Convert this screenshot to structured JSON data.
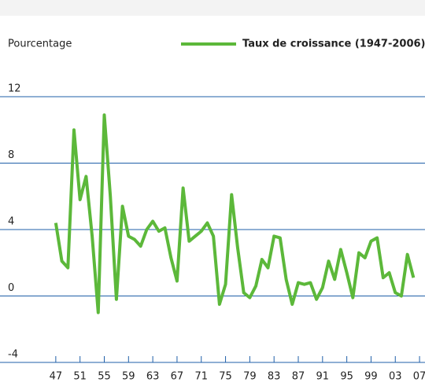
{
  "chart_data": {
    "type": "line",
    "y_axis_label": "Pourcentage",
    "x": [
      1947,
      1948,
      1949,
      1950,
      1951,
      1952,
      1953,
      1954,
      1955,
      1956,
      1957,
      1958,
      1959,
      1960,
      1961,
      1962,
      1963,
      1964,
      1965,
      1966,
      1967,
      1968,
      1969,
      1970,
      1971,
      1972,
      1973,
      1974,
      1975,
      1976,
      1977,
      1978,
      1979,
      1980,
      1981,
      1982,
      1983,
      1984,
      1985,
      1986,
      1987,
      1988,
      1989,
      1990,
      1991,
      1992,
      1993,
      1994,
      1995,
      1996,
      1997,
      1998,
      1999,
      2000,
      2001,
      2002,
      2003,
      2004,
      2005,
      2006
    ],
    "series": [
      {
        "name": "Taux de croissance (1947-2006)",
        "color": "#5cb83a",
        "values": [
          4.4,
          2.1,
          1.7,
          10.0,
          5.8,
          7.2,
          3.6,
          -1.0,
          10.9,
          6.0,
          -0.2,
          5.4,
          3.6,
          3.4,
          3.0,
          4.0,
          4.5,
          3.9,
          4.1,
          2.3,
          0.9,
          6.5,
          3.3,
          3.6,
          3.9,
          4.4,
          3.6,
          -0.5,
          0.7,
          6.1,
          2.9,
          0.2,
          -0.1,
          0.6,
          2.2,
          1.7,
          3.6,
          3.5,
          1.0,
          -0.5,
          0.8,
          0.7,
          0.8,
          -0.2,
          0.5,
          2.1,
          1.0,
          2.8,
          1.4,
          -0.1,
          2.6,
          2.3,
          3.3,
          3.5,
          1.1,
          1.4,
          0.2,
          0.0,
          2.5,
          1.1
        ]
      }
    ],
    "xlim": [
      1937.8,
      2007.9
    ],
    "xticks": [
      {
        "value": 1947,
        "label": "47"
      },
      {
        "value": 1951,
        "label": "51"
      },
      {
        "value": 1955,
        "label": "55"
      },
      {
        "value": 1959,
        "label": "59"
      },
      {
        "value": 1963,
        "label": "63"
      },
      {
        "value": 1967,
        "label": "67"
      },
      {
        "value": 1971,
        "label": "71"
      },
      {
        "value": 1975,
        "label": "75"
      },
      {
        "value": 1979,
        "label": "79"
      },
      {
        "value": 1983,
        "label": "83"
      },
      {
        "value": 1987,
        "label": "87"
      },
      {
        "value": 1991,
        "label": "91"
      },
      {
        "value": 1995,
        "label": "95"
      },
      {
        "value": 1999,
        "label": "99"
      },
      {
        "value": 2003,
        "label": "03"
      },
      {
        "value": 2007,
        "label": "07"
      }
    ],
    "ylim": [
      -4,
      12
    ],
    "yticks": [
      -4,
      0,
      4,
      8,
      12
    ],
    "grid": true,
    "grid_color": "#1f5fa8"
  }
}
